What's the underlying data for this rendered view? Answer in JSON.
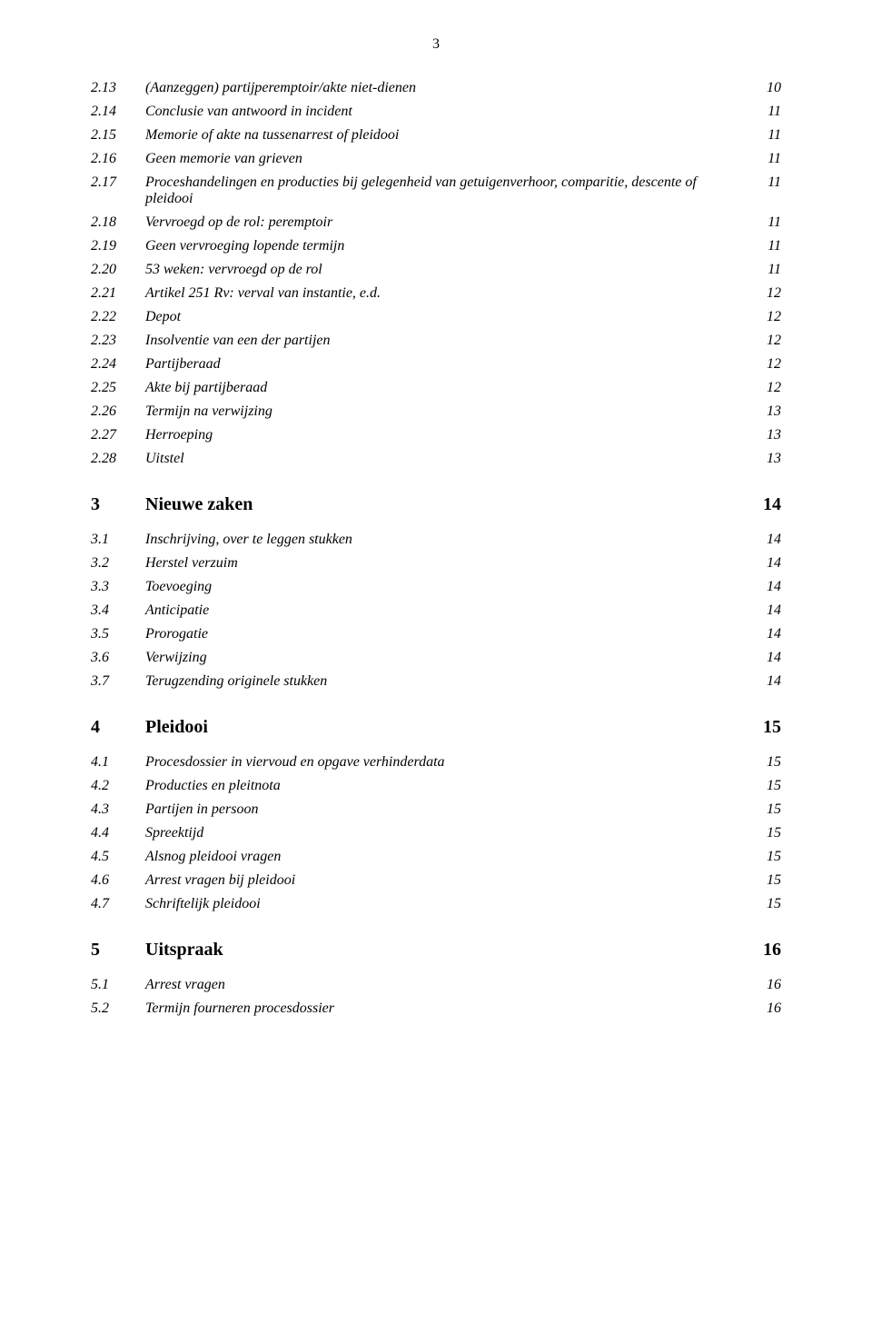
{
  "pageNumber": "3",
  "typography": {
    "bodyFont": "Times New Roman",
    "bodySizePt": 12,
    "headingSizePt": 15,
    "textColor": "#000000",
    "background": "#ffffff"
  },
  "toc": [
    {
      "num": "2.13",
      "title": "(Aanzeggen) partijperemptoir/akte niet-dienen",
      "page": "10",
      "style": "italic"
    },
    {
      "num": "2.14",
      "title": "Conclusie van antwoord in incident",
      "page": "11",
      "style": "italic"
    },
    {
      "num": "2.15",
      "title": "Memorie of akte na tussenarrest of pleidooi",
      "page": "11",
      "style": "italic"
    },
    {
      "num": "2.16",
      "title": "Geen memorie van grieven",
      "page": "11",
      "style": "italic"
    },
    {
      "num": "2.17",
      "title": "Proceshandelingen en producties bij gelegenheid van getuigenverhoor, comparitie, descente of pleidooi",
      "page": "11",
      "style": "italic"
    },
    {
      "num": "2.18",
      "title": "Vervroegd op de rol: peremptoir",
      "page": "11",
      "style": "italic"
    },
    {
      "num": "2.19",
      "title": "Geen vervroeging lopende termijn",
      "page": "11",
      "style": "italic"
    },
    {
      "num": "2.20",
      "title": "53 weken: vervroegd op de rol",
      "page": "11",
      "style": "italic"
    },
    {
      "num": "2.21",
      "title": "Artikel 251 Rv: verval van instantie, e.d.",
      "page": "12",
      "style": "italic"
    },
    {
      "num": "2.22",
      "title": "Depot",
      "page": "12",
      "style": "italic"
    },
    {
      "num": "2.23",
      "title": "Insolventie van een der partijen",
      "page": "12",
      "style": "italic"
    },
    {
      "num": "2.24",
      "title": "Partijberaad",
      "page": "12",
      "style": "italic"
    },
    {
      "num": "2.25",
      "title": "Akte bij partijberaad",
      "page": "12",
      "style": "italic"
    },
    {
      "num": "2.26",
      "title": "Termijn na verwijzing",
      "page": "13",
      "style": "italic"
    },
    {
      "num": "2.27",
      "title": "Herroeping",
      "page": "13",
      "style": "italic"
    },
    {
      "num": "2.28",
      "title": "Uitstel",
      "page": "13",
      "style": "italic"
    },
    {
      "num": "3",
      "title": "Nieuwe zaken",
      "page": "14",
      "style": "heading"
    },
    {
      "num": "3.1",
      "title": "Inschrijving, over te leggen stukken",
      "page": "14",
      "style": "italic"
    },
    {
      "num": "3.2",
      "title": "Herstel verzuim",
      "page": "14",
      "style": "italic"
    },
    {
      "num": "3.3",
      "title": "Toevoeging",
      "page": "14",
      "style": "italic"
    },
    {
      "num": "3.4",
      "title": "Anticipatie",
      "page": "14",
      "style": "italic"
    },
    {
      "num": "3.5",
      "title": "Prorogatie",
      "page": "14",
      "style": "italic"
    },
    {
      "num": "3.6",
      "title": "Verwijzing",
      "page": "14",
      "style": "italic"
    },
    {
      "num": "3.7",
      "title": "Terugzending originele stukken",
      "page": "14",
      "style": "italic"
    },
    {
      "num": "4",
      "title": "Pleidooi",
      "page": "15",
      "style": "heading"
    },
    {
      "num": "4.1",
      "title": "Procesdossier in viervoud en opgave verhinderdata",
      "page": "15",
      "style": "italic"
    },
    {
      "num": "4.2",
      "title": "Producties en pleitnota",
      "page": "15",
      "style": "italic"
    },
    {
      "num": "4.3",
      "title": "Partijen in persoon",
      "page": "15",
      "style": "italic"
    },
    {
      "num": "4.4",
      "title": "Spreektijd",
      "page": "15",
      "style": "italic"
    },
    {
      "num": "4.5",
      "title": "Alsnog pleidooi vragen",
      "page": "15",
      "style": "italic"
    },
    {
      "num": "4.6",
      "title": "Arrest vragen bij pleidooi",
      "page": "15",
      "style": "italic"
    },
    {
      "num": "4.7",
      "title": "Schriftelijk pleidooi",
      "page": "15",
      "style": "italic"
    },
    {
      "num": "5",
      "title": "Uitspraak",
      "page": "16",
      "style": "heading"
    },
    {
      "num": "5.1",
      "title": "Arrest vragen",
      "page": "16",
      "style": "italic"
    },
    {
      "num": "5.2",
      "title": "Termijn fourneren procesdossier",
      "page": "16",
      "style": "italic"
    }
  ]
}
